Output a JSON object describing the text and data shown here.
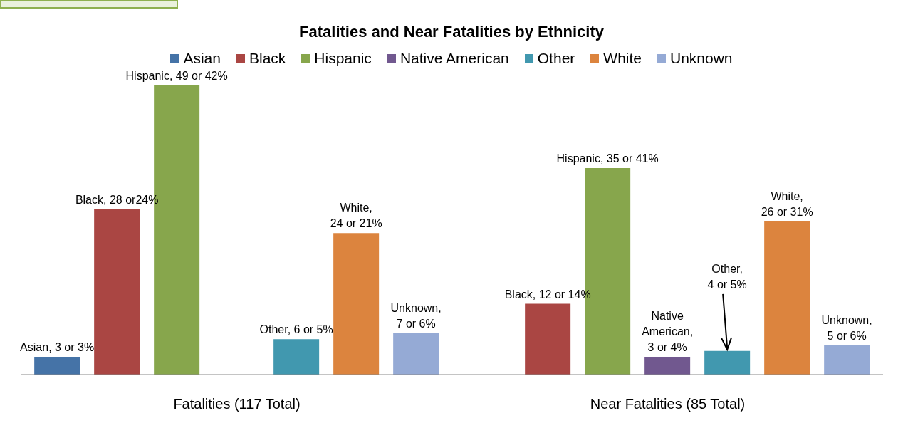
{
  "chart_data": {
    "type": "bar",
    "title": "Fatalities and Near Fatalities by Ethnicity",
    "categories": [
      "Fatalities (117 Total)",
      "Near Fatalities (85 Total)"
    ],
    "series": [
      {
        "name": "Asian",
        "color": "#4573a7",
        "values": [
          3,
          null
        ],
        "value_labels": [
          "Asian, 3 or 3%",
          null
        ]
      },
      {
        "name": "Black",
        "color": "#aa4643",
        "values": [
          28,
          12
        ],
        "value_labels": [
          "Black, 28 or24%",
          "Black, 12 or 14%"
        ]
      },
      {
        "name": "Hispanic",
        "color": "#87a64c",
        "values": [
          49,
          35
        ],
        "value_labels": [
          "Hispanic, 49 or 42%",
          "Hispanic, 35 or 41%"
        ]
      },
      {
        "name": "Native American",
        "color": "#71588f",
        "values": [
          null,
          3
        ],
        "value_labels": [
          null,
          "Native\nAmerican,\n3 or 4%"
        ]
      },
      {
        "name": "Other",
        "color": "#4198af",
        "values": [
          6,
          4
        ],
        "value_labels": [
          "Other, 6 or 5%",
          "Other,\n4 or 5%"
        ]
      },
      {
        "name": "White",
        "color": "#dc843e",
        "values": [
          24,
          26
        ],
        "value_labels": [
          "White,\n24 or 21%",
          "White,\n26 or 31%"
        ]
      },
      {
        "name": "Unknown",
        "color": "#95aad5",
        "values": [
          7,
          5
        ],
        "value_labels": [
          "Unknown,\n7 or 6%",
          "Unknown,\n5 or 6%"
        ]
      }
    ],
    "legend": "top"
  }
}
